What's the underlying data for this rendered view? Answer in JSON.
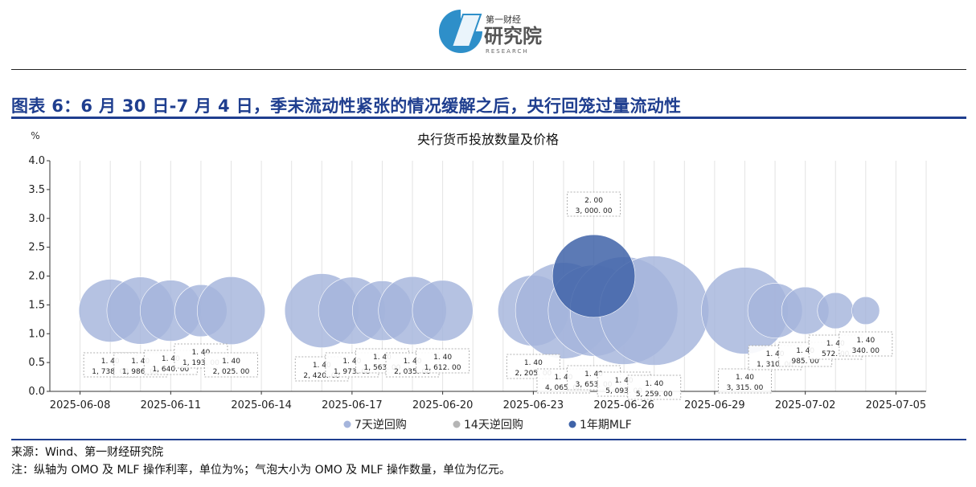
{
  "logo": {
    "line1": "第一财经",
    "line2": "研究院",
    "line3": "RESEARCH"
  },
  "figure_title": "图表 6：6 月 30 日-7 月 4 日，季末流动性紧张的情况缓解之后，央行回笼过量流动性",
  "source": "来源：Wind、第一财经研究院",
  "footnote": "注：纵轴为 OMO 及 MLF 操作利率，单位为%；气泡大小为 OMO 及 MLF 操作数量，单位为亿元。",
  "colors": {
    "omo7": "#a5b5dc",
    "mlf": "#3f63a8",
    "accent": "#1f3e8f"
  },
  "chart_data": {
    "type": "bubble",
    "title": "央行货币投放数量及价格",
    "ylabel": "%",
    "ylim": [
      0,
      4.0
    ],
    "yticks": [
      "0.0",
      "0.5",
      "1.0",
      "1.5",
      "2.0",
      "2.5",
      "3.0",
      "3.5",
      "4.0"
    ],
    "xlim": [
      "2025-06-07",
      "2025-07-06"
    ],
    "xticks": [
      "2025-06-08",
      "2025-06-11",
      "2025-06-14",
      "2025-06-17",
      "2025-06-20",
      "2025-06-23",
      "2025-06-26",
      "2025-06-29",
      "2025-07-02",
      "2025-07-05"
    ],
    "grid": "vertical",
    "legend_position": "bottom",
    "series": [
      {
        "name": "7天逆回购",
        "points": [
          {
            "date": "2025-06-09",
            "rate": 1.4,
            "amount": 1738.0,
            "label_rate": "1. 40",
            "label_amount": "1, 738. 00"
          },
          {
            "date": "2025-06-10",
            "rate": 1.4,
            "amount": 1986.0,
            "label_rate": "1. 40",
            "label_amount": "1, 986. 00"
          },
          {
            "date": "2025-06-11",
            "rate": 1.4,
            "amount": 1640.0,
            "label_rate": "1. 40",
            "label_amount": "1, 640. 00"
          },
          {
            "date": "2025-06-12",
            "rate": 1.4,
            "amount": 1193.0,
            "label_rate": "1. 40",
            "label_amount": "1, 193. 00"
          },
          {
            "date": "2025-06-13",
            "rate": 1.4,
            "amount": 2025.0,
            "label_rate": "1. 40",
            "label_amount": "2, 025. 00"
          },
          {
            "date": "2025-06-16",
            "rate": 1.4,
            "amount": 2420.0,
            "label_rate": "1. 40",
            "label_amount": "2, 420. 00"
          },
          {
            "date": "2025-06-17",
            "rate": 1.4,
            "amount": 1973.0,
            "label_rate": "1. 40",
            "label_amount": "1, 973. 00"
          },
          {
            "date": "2025-06-18",
            "rate": 1.4,
            "amount": 1563.0,
            "label_rate": "1. 40",
            "label_amount": "1, 563. 00"
          },
          {
            "date": "2025-06-19",
            "rate": 1.4,
            "amount": 2035.0,
            "label_rate": "1. 40",
            "label_amount": "2, 035. 00"
          },
          {
            "date": "2025-06-20",
            "rate": 1.4,
            "amount": 1612.0,
            "label_rate": "1. 40",
            "label_amount": "1, 612. 00"
          },
          {
            "date": "2025-06-23",
            "rate": 1.4,
            "amount": 2205.0,
            "label_rate": "1. 40",
            "label_amount": "2, 205. 00"
          },
          {
            "date": "2025-06-24",
            "rate": 1.4,
            "amount": 4065.0,
            "label_rate": "1. 40",
            "label_amount": "4, 065. 00"
          },
          {
            "date": "2025-06-25",
            "rate": 1.4,
            "amount": 3653.0,
            "label_rate": "1. 40",
            "label_amount": "3, 653. 00"
          },
          {
            "date": "2025-06-26",
            "rate": 1.4,
            "amount": 5093.0,
            "label_rate": "1. 40",
            "label_amount": "5, 093. 00"
          },
          {
            "date": "2025-06-27",
            "rate": 1.4,
            "amount": 5259.0,
            "label_rate": "1. 40",
            "label_amount": "5, 259. 00"
          },
          {
            "date": "2025-06-30",
            "rate": 1.4,
            "amount": 3315.0,
            "label_rate": "1. 40",
            "label_amount": "3, 315. 00"
          },
          {
            "date": "2025-07-01",
            "rate": 1.4,
            "amount": 1310.0,
            "label_rate": "1. 40",
            "label_amount": "1, 310. 00"
          },
          {
            "date": "2025-07-02",
            "rate": 1.4,
            "amount": 985.0,
            "label_rate": "1. 40",
            "label_amount": "985. 00"
          },
          {
            "date": "2025-07-03",
            "rate": 1.4,
            "amount": 572.0,
            "label_rate": "1. 40",
            "label_amount": "572. 00"
          },
          {
            "date": "2025-07-04",
            "rate": 1.4,
            "amount": 340.0,
            "label_rate": "1. 40",
            "label_amount": "340. 00"
          }
        ]
      },
      {
        "name": "14天逆回购",
        "points": []
      },
      {
        "name": "1年期MLF",
        "points": [
          {
            "date": "2025-06-25",
            "rate": 2.0,
            "amount": 3000.0,
            "label_rate": "2. 00",
            "label_amount": "3, 000. 00"
          }
        ]
      }
    ]
  }
}
